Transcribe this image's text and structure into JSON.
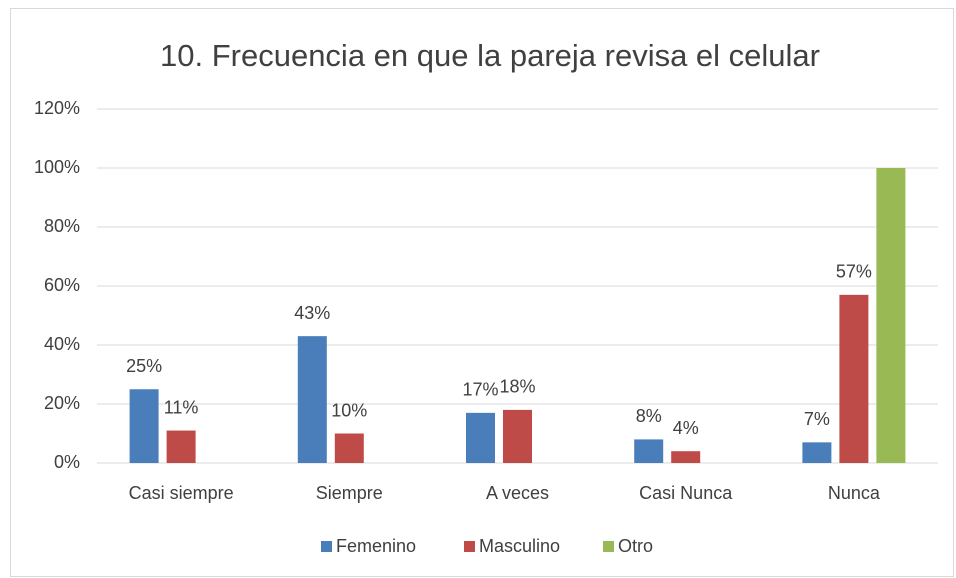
{
  "chart_data": {
    "type": "bar",
    "title": "10. Frecuencia en que la pareja revisa el celular",
    "categories": [
      "Casi siempre",
      "Siempre",
      "A veces",
      "Casi Nunca",
      "Nunca"
    ],
    "series": [
      {
        "name": "Femenino",
        "color": "#4a7ebb",
        "values": [
          25,
          43,
          17,
          8,
          7
        ],
        "value_labels": [
          "25%",
          "43%",
          "17%",
          "8%",
          "7%"
        ]
      },
      {
        "name": "Masculino",
        "color": "#be4b48",
        "values": [
          11,
          10,
          18,
          4,
          57
        ],
        "value_labels": [
          "11%",
          "10%",
          "18%",
          "4%",
          "57%"
        ]
      },
      {
        "name": "Otro",
        "color": "#98b954",
        "values": [
          null,
          null,
          null,
          null,
          100
        ]
      }
    ],
    "ylim": [
      0,
      120
    ],
    "yticks": [
      {
        "value": 0,
        "label": "0%"
      },
      {
        "value": 20,
        "label": "20%"
      },
      {
        "value": 40,
        "label": "40%"
      },
      {
        "value": 60,
        "label": "60%"
      },
      {
        "value": 80,
        "label": "80%"
      },
      {
        "value": 100,
        "label": "100%"
      },
      {
        "value": 120,
        "label": "120%"
      }
    ],
    "grid": true,
    "legend": "bottom"
  }
}
